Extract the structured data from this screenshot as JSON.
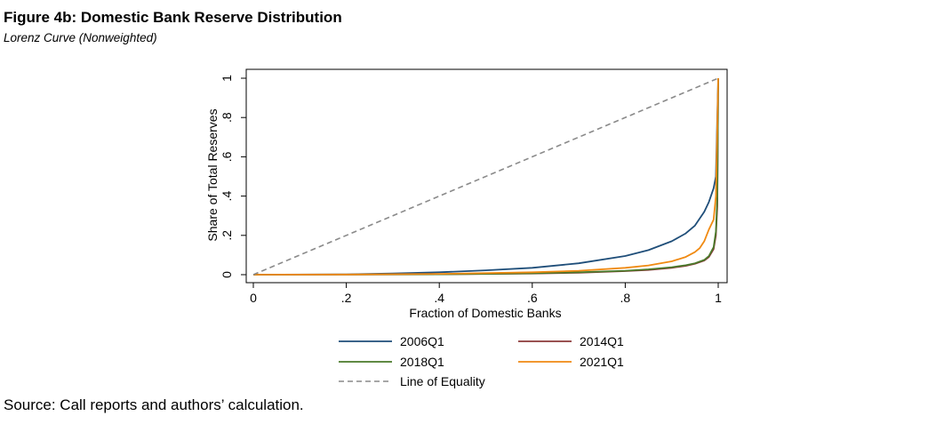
{
  "figure": {
    "title": "Figure 4b: Domestic Bank Reserve Distribution",
    "subtitle": "Lorenz Curve (Nonweighted)",
    "source": "Source: Call reports and authors’ calculation."
  },
  "chart_data": {
    "type": "line",
    "title": "Figure 4b: Domestic Bank Reserve Distribution",
    "subtitle": "Lorenz Curve (Nonweighted)",
    "xlabel": "Fraction of Domestic Banks",
    "ylabel": "Share of Total Reserves",
    "xlim": [
      0,
      1
    ],
    "ylim": [
      0,
      1
    ],
    "xticks": [
      {
        "value": 0,
        "label": "0"
      },
      {
        "value": 0.2,
        "label": ".2"
      },
      {
        "value": 0.4,
        "label": ".4"
      },
      {
        "value": 0.6,
        "label": ".6"
      },
      {
        "value": 0.8,
        "label": ".8"
      },
      {
        "value": 1,
        "label": "1"
      }
    ],
    "yticks": [
      {
        "value": 0,
        "label": "0"
      },
      {
        "value": 0.2,
        "label": ".2"
      },
      {
        "value": 0.4,
        "label": ".4"
      },
      {
        "value": 0.6,
        "label": ".6"
      },
      {
        "value": 0.8,
        "label": ".8"
      },
      {
        "value": 1,
        "label": "1"
      }
    ],
    "grid": false,
    "legend_position": "bottom",
    "series": [
      {
        "name": "2006Q1",
        "color": "#1f4e79",
        "dash": "solid",
        "x": [
          0,
          0.2,
          0.3,
          0.4,
          0.5,
          0.6,
          0.7,
          0.8,
          0.85,
          0.9,
          0.93,
          0.95,
          0.97,
          0.98,
          0.99,
          0.995,
          1.0
        ],
        "y": [
          0,
          0.002,
          0.006,
          0.012,
          0.022,
          0.035,
          0.058,
          0.095,
          0.125,
          0.17,
          0.21,
          0.25,
          0.32,
          0.37,
          0.44,
          0.5,
          1.0
        ]
      },
      {
        "name": "2014Q1",
        "color": "#8b3a3a",
        "dash": "solid",
        "x": [
          0,
          0.2,
          0.4,
          0.6,
          0.7,
          0.8,
          0.85,
          0.9,
          0.93,
          0.95,
          0.97,
          0.98,
          0.99,
          0.995,
          0.998,
          1.0
        ],
        "y": [
          0,
          0.0005,
          0.002,
          0.006,
          0.01,
          0.018,
          0.024,
          0.035,
          0.045,
          0.055,
          0.072,
          0.09,
          0.13,
          0.2,
          0.35,
          1.0
        ]
      },
      {
        "name": "2018Q1",
        "color": "#4a7a2a",
        "dash": "solid",
        "x": [
          0,
          0.2,
          0.4,
          0.6,
          0.7,
          0.8,
          0.85,
          0.9,
          0.93,
          0.95,
          0.97,
          0.98,
          0.99,
          0.995,
          0.998,
          1.0
        ],
        "y": [
          0,
          0.0005,
          0.002,
          0.007,
          0.012,
          0.02,
          0.027,
          0.038,
          0.048,
          0.058,
          0.075,
          0.095,
          0.14,
          0.22,
          0.4,
          1.0
        ]
      },
      {
        "name": "2021Q1",
        "color": "#f08a12",
        "dash": "solid",
        "x": [
          0,
          0.2,
          0.4,
          0.6,
          0.7,
          0.8,
          0.85,
          0.9,
          0.93,
          0.95,
          0.96,
          0.97,
          0.98,
          0.99,
          0.995,
          1.0
        ],
        "y": [
          0,
          0.001,
          0.004,
          0.012,
          0.02,
          0.035,
          0.047,
          0.068,
          0.09,
          0.115,
          0.135,
          0.17,
          0.23,
          0.28,
          0.4,
          1.0
        ]
      },
      {
        "name": "Line of Equality",
        "color": "#8a8a8a",
        "dash": "dashed",
        "x": [
          0,
          1
        ],
        "y": [
          0,
          1
        ]
      }
    ]
  }
}
